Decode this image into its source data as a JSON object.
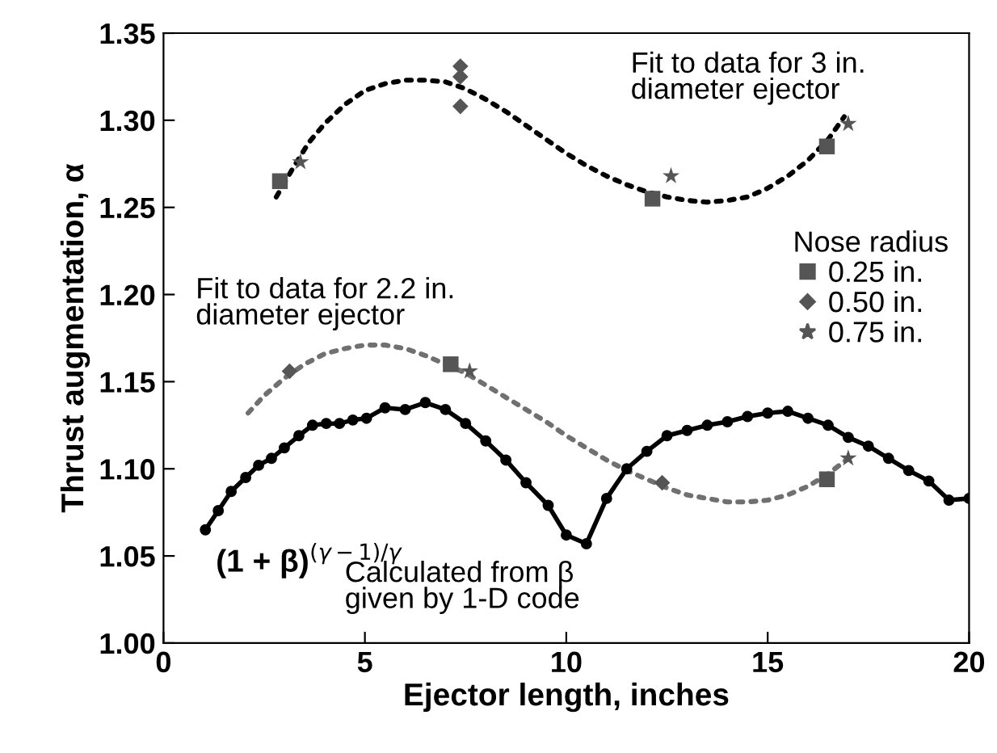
{
  "chart_data": {
    "type": "line",
    "xlabel": "Ejector length, inches",
    "ylabel": "Thrust augmentation, α",
    "legend_title": "Nose radius",
    "legend": "right",
    "xlim": [
      0,
      20
    ],
    "xticks": [
      0,
      5,
      10,
      15,
      20
    ],
    "ylim": [
      1.0,
      1.35
    ],
    "yticks": [
      {
        "value": 1.0,
        "label": "1.00"
      },
      {
        "value": 1.05,
        "label": "1.05"
      },
      {
        "value": 1.1,
        "label": "1.10"
      },
      {
        "value": 1.15,
        "label": "1.15"
      },
      {
        "value": 1.2,
        "label": "1.20"
      },
      {
        "value": 1.25,
        "label": "1.25"
      },
      {
        "value": 1.3,
        "label": "1.30"
      },
      {
        "value": 1.35,
        "label": "1.35"
      }
    ],
    "grid": false,
    "annotations": [
      "Fit to data for 3 in.\ndiameter ejector",
      "Fit to data for 2.2 in.\ndiameter ejector",
      "(1 + β)$^{(γ−1)/γ}$",
      "Calculated from β\ngiven by 1-D code"
    ],
    "series": [
      {
        "color": "#000000",
        "line_style": "dotted",
        "marker": "none",
        "x": [
          2.8,
          3.2,
          3.6,
          4,
          4.5,
          5,
          5.5,
          6,
          6.5,
          7,
          7.5,
          8,
          8.5,
          9,
          9.5,
          10,
          10.5,
          11,
          11.5,
          12,
          12.5,
          13,
          13.5,
          14,
          14.5,
          15,
          15.5,
          16,
          16.5,
          16.9
        ],
        "values": [
          1.256,
          1.272,
          1.287,
          1.298,
          1.309,
          1.317,
          1.321,
          1.323,
          1.323,
          1.322,
          1.318,
          1.312,
          1.305,
          1.297,
          1.289,
          1.281,
          1.274,
          1.268,
          1.263,
          1.259,
          1.256,
          1.254,
          1.253,
          1.254,
          1.256,
          1.261,
          1.268,
          1.277,
          1.289,
          1.302
        ]
      },
      {
        "color": "#707070",
        "line_style": "dotted",
        "marker": "none",
        "x": [
          2.1,
          2.5,
          3,
          3.5,
          4,
          4.5,
          5,
          5.5,
          6,
          6.5,
          7,
          7.5,
          8,
          8.5,
          9,
          9.5,
          10,
          10.5,
          11,
          11.5,
          12,
          12.5,
          13,
          13.5,
          14,
          14.5,
          15,
          15.5,
          16,
          16.5,
          17
        ],
        "values": [
          1.132,
          1.142,
          1.152,
          1.16,
          1.166,
          1.169,
          1.171,
          1.171,
          1.169,
          1.165,
          1.16,
          1.155,
          1.148,
          1.141,
          1.134,
          1.127,
          1.119,
          1.112,
          1.105,
          1.099,
          1.094,
          1.089,
          1.085,
          1.083,
          1.081,
          1.081,
          1.082,
          1.085,
          1.09,
          1.097,
          1.106
        ]
      },
      {
        "color": "#000000",
        "line_style": "solid",
        "marker": "circle",
        "x": [
          1.04,
          1.36,
          1.68,
          2.04,
          2.36,
          2.68,
          3.0,
          3.36,
          3.7,
          4.04,
          4.37,
          4.7,
          5.04,
          5.5,
          6.0,
          6.5,
          7.0,
          7.5,
          8.0,
          8.5,
          9.0,
          9.55,
          10.0,
          10.5,
          11.0,
          11.5,
          12.0,
          12.5,
          13.0,
          13.5,
          14.0,
          14.5,
          15.0,
          15.5,
          16.0,
          16.5,
          17.0,
          17.5,
          18.0,
          18.5,
          19.0,
          19.5,
          20.0
        ],
        "values": [
          1.065,
          1.076,
          1.087,
          1.095,
          1.102,
          1.106,
          1.112,
          1.119,
          1.125,
          1.126,
          1.126,
          1.128,
          1.129,
          1.135,
          1.134,
          1.138,
          1.134,
          1.126,
          1.116,
          1.105,
          1.092,
          1.079,
          1.062,
          1.057,
          1.083,
          1.1,
          1.11,
          1.119,
          1.122,
          1.125,
          1.127,
          1.13,
          1.132,
          1.133,
          1.129,
          1.125,
          1.118,
          1.113,
          1.106,
          1.099,
          1.093,
          1.082,
          1.083
        ]
      },
      {
        "type": "scatter",
        "name": "0.25 in.",
        "color": "#555555",
        "marker": "square",
        "x": [
          2.89,
          12.14,
          16.47,
          7.13,
          16.47
        ],
        "values": [
          1.265,
          1.255,
          1.285,
          1.16,
          1.094
        ]
      },
      {
        "type": "scatter",
        "name": "0.50 in.",
        "color": "#555555",
        "marker": "diamond",
        "x": [
          7.37,
          7.37,
          7.37,
          3.13,
          12.38
        ],
        "values": [
          1.331,
          1.325,
          1.308,
          1.156,
          1.092
        ]
      },
      {
        "type": "scatter",
        "name": "0.75 in.",
        "color": "#555555",
        "marker": "star",
        "x": [
          3.4,
          12.6,
          17.0,
          7.6,
          17.0
        ],
        "values": [
          1.276,
          1.268,
          1.298,
          1.156,
          1.106
        ]
      }
    ]
  }
}
